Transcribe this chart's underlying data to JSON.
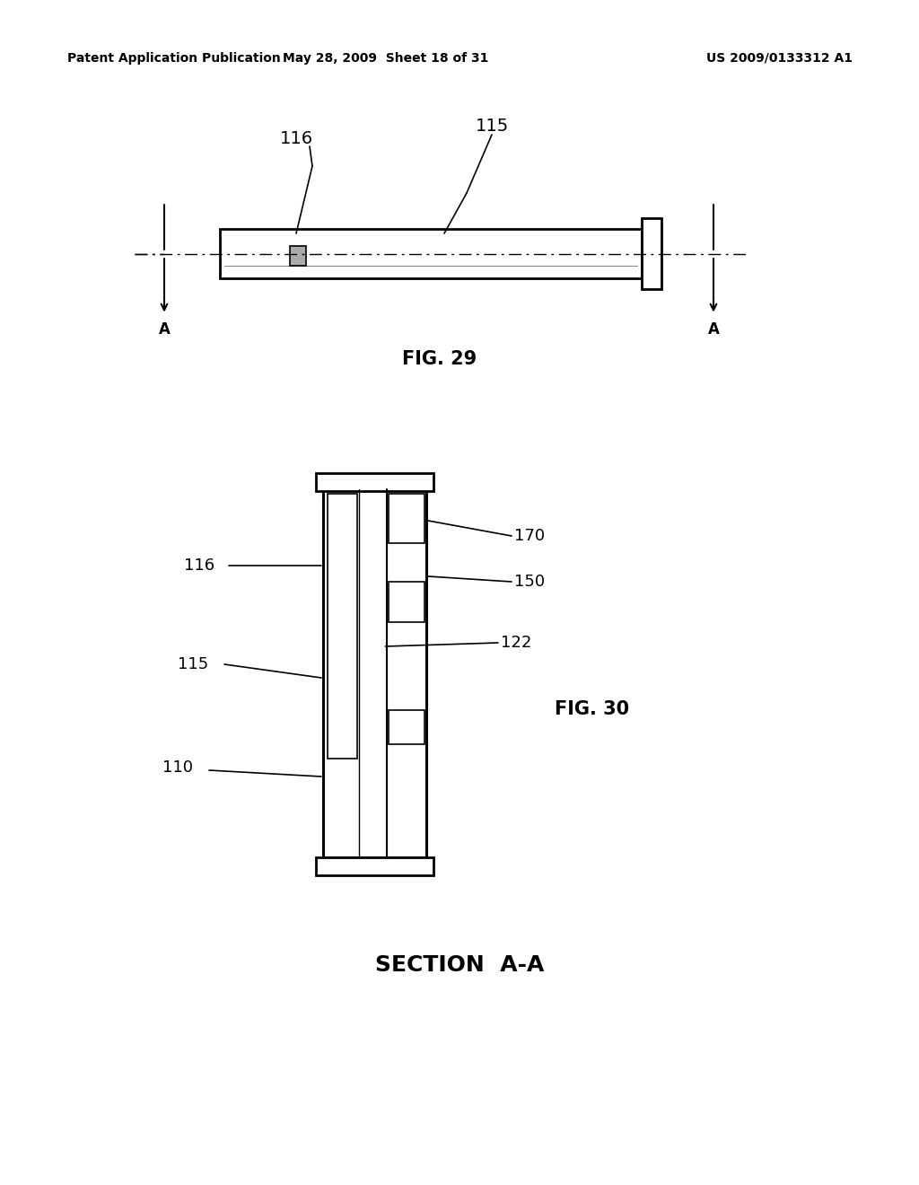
{
  "bg_color": "#ffffff",
  "header_left": "Patent Application Publication",
  "header_center": "May 28, 2009  Sheet 18 of 31",
  "header_right": "US 2009/0133312 A1",
  "fig29_label": "FIG. 29",
  "fig30_label": "FIG. 30",
  "section_label": "SECTION  A-A"
}
